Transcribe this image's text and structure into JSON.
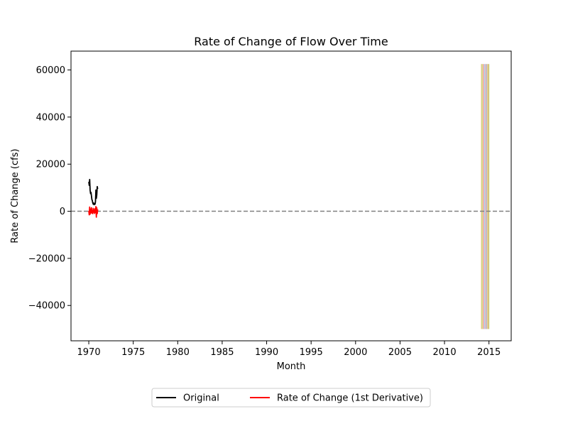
{
  "chart_data": {
    "type": "line",
    "title": "Rate of Change of Flow Over Time",
    "xlabel": "Month",
    "ylabel": "Rate of Change (cfs)",
    "xlim": [
      1968.0,
      2017.5
    ],
    "ylim": [
      -55000,
      68000
    ],
    "xticks": [
      1970,
      1975,
      1980,
      1985,
      1990,
      1995,
      2000,
      2005,
      2010,
      2015
    ],
    "xtick_labels": [
      "1970",
      "1975",
      "1980",
      "1985",
      "1990",
      "1995",
      "2000",
      "2005",
      "2010",
      "2015"
    ],
    "yticks": [
      -40000,
      -20000,
      0,
      20000,
      40000,
      60000
    ],
    "ytick_labels": [
      "−40000",
      "−20000",
      "0",
      "20000",
      "40000",
      "60000"
    ],
    "zero_line": {
      "y": 0,
      "color": "#808080",
      "style": "dashed"
    },
    "series": [
      {
        "name": "Original",
        "color": "#000000",
        "x": [
          1970.0,
          1970.05,
          1970.1,
          1970.15,
          1970.2,
          1970.25,
          1970.3,
          1970.35,
          1970.4,
          1970.45,
          1970.5,
          1970.55,
          1970.6,
          1970.65,
          1970.7,
          1970.75,
          1970.8,
          1970.85,
          1970.9,
          1970.95,
          1971.0
        ],
        "y": [
          12500,
          11000,
          13500,
          9000,
          7500,
          8000,
          6500,
          5000,
          4500,
          3500,
          3000,
          3500,
          2800,
          3200,
          3000,
          4000,
          9000,
          5500,
          7000,
          10500,
          9500
        ]
      },
      {
        "name": "Rate of Change (1st Derivative)",
        "color": "#ff0000",
        "x": [
          1970.0,
          1970.05,
          1970.1,
          1970.15,
          1970.2,
          1970.25,
          1970.3,
          1970.35,
          1970.4,
          1970.45,
          1970.5,
          1970.55,
          1970.6,
          1970.65,
          1970.7,
          1970.75,
          1970.8,
          1970.85,
          1970.9,
          1970.95,
          1971.0
        ],
        "y": [
          200,
          -1500,
          1800,
          -1200,
          900,
          -600,
          1500,
          -800,
          300,
          -1000,
          1200,
          -400,
          600,
          -900,
          1100,
          -500,
          2000,
          -2500,
          1500,
          -1000,
          800
        ]
      }
    ],
    "vertical_bands": {
      "x_start": 2014.1,
      "x_end": 2015.0,
      "y_range": [
        -50000,
        62500
      ],
      "colors": [
        "#ffbb78",
        "#98df8a",
        "#ffd27f",
        "#ff9896",
        "#c5b0d5",
        "#9edae5",
        "#f7b6d2",
        "#c49c94",
        "#aec7e8",
        "#dbdb8d",
        "#ff9f6b",
        "#b5cf6b"
      ]
    },
    "grid": false,
    "legend": {
      "placement": "bottom-center",
      "columns": 2
    }
  }
}
